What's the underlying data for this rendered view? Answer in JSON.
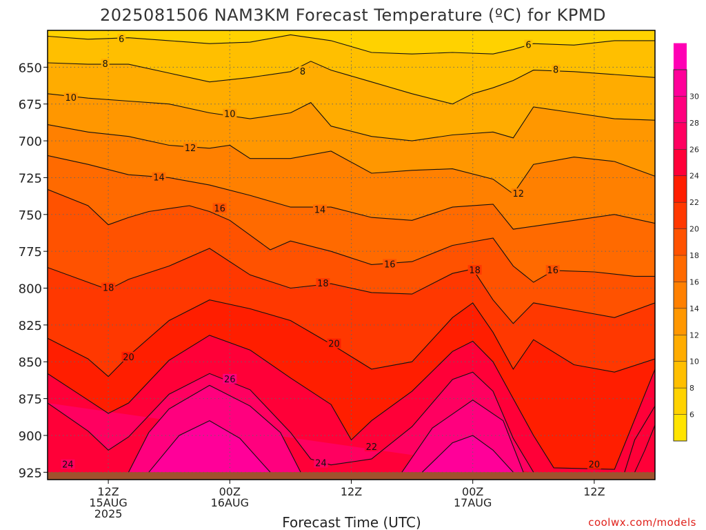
{
  "title": "2025081506 NAM3KM Forecast Temperature (ºC) for KPMD",
  "credit": "coolwx.com/models",
  "colors": {
    "bands": [
      "#ffe400",
      "#ffd200",
      "#ffbf00",
      "#ffac00",
      "#ff9700",
      "#ff8000",
      "#ff6a00",
      "#ff5200",
      "#ff3800",
      "#ff1e00",
      "#ff0038",
      "#ff0060",
      "#ff007e",
      "#ff0099",
      "#ff00b4",
      "#ff00d0"
    ],
    "ground": "#a0522d"
  },
  "chart_data": {
    "type": "heatmap",
    "title": "2025081506 NAM3KM Forecast Temperature (ºC) for KPMD",
    "xlabel": "Forecast Time (UTC)",
    "ylabel": "",
    "ylim": [
      625,
      930
    ],
    "yticks": [
      650,
      675,
      700,
      725,
      750,
      775,
      800,
      825,
      850,
      875,
      900,
      925
    ],
    "xlim": [
      "2025-08-15 06Z",
      "2025-08-17 18Z"
    ],
    "xticks": [
      {
        "line1": "12Z",
        "line2": "15AUG",
        "line3": "2025"
      },
      {
        "line1": "00Z",
        "line2": "16AUG",
        "line3": ""
      },
      {
        "line1": "12Z",
        "line2": "",
        "line3": ""
      },
      {
        "line1": "00Z",
        "line2": "17AUG",
        "line3": ""
      },
      {
        "line1": "12Z",
        "line2": "",
        "line3": ""
      }
    ],
    "xtick_hours": [
      6,
      18,
      30,
      42,
      54
    ],
    "colorbar": {
      "ticks": [
        6,
        8,
        10,
        12,
        14,
        16,
        18,
        20,
        22,
        24,
        26,
        28,
        30
      ],
      "min": 4,
      "max": 32
    },
    "contour_labels": [
      {
        "text": "6",
        "hour": 7.3,
        "p": 631
      },
      {
        "text": "6",
        "hour": 47.5,
        "p": 635
      },
      {
        "text": "8",
        "hour": 5.7,
        "p": 648
      },
      {
        "text": "8",
        "hour": 25.2,
        "p": 653
      },
      {
        "text": "8",
        "hour": 50.2,
        "p": 652
      },
      {
        "text": "10",
        "hour": 2.3,
        "p": 671
      },
      {
        "text": "10",
        "hour": 18.0,
        "p": 682
      },
      {
        "text": "12",
        "hour": 14.1,
        "p": 705
      },
      {
        "text": "12",
        "hour": 46.5,
        "p": 736
      },
      {
        "text": "14",
        "hour": 11.0,
        "p": 725
      },
      {
        "text": "14",
        "hour": 26.9,
        "p": 747
      },
      {
        "text": "16",
        "hour": 17.0,
        "p": 746
      },
      {
        "text": "16",
        "hour": 33.8,
        "p": 784
      },
      {
        "text": "16",
        "hour": 49.9,
        "p": 788
      },
      {
        "text": "18",
        "hour": 6.0,
        "p": 800
      },
      {
        "text": "18",
        "hour": 27.2,
        "p": 797
      },
      {
        "text": "18",
        "hour": 42.2,
        "p": 788
      },
      {
        "text": "20",
        "hour": 8.0,
        "p": 847
      },
      {
        "text": "20",
        "hour": 28.3,
        "p": 838
      },
      {
        "text": "20",
        "hour": 54.0,
        "p": 920
      },
      {
        "text": "22",
        "hour": 32.0,
        "p": 908
      },
      {
        "text": "24",
        "hour": 2.0,
        "p": 920
      },
      {
        "text": "24",
        "hour": 27.0,
        "p": 919
      },
      {
        "text": "26",
        "hour": 18.0,
        "p": 862
      }
    ],
    "isotherms": [
      {
        "level": 6,
        "points": [
          [
            0,
            629
          ],
          [
            4,
            631
          ],
          [
            8,
            630
          ],
          [
            12,
            632
          ],
          [
            16,
            634
          ],
          [
            20,
            633
          ],
          [
            24,
            628
          ],
          [
            28,
            632
          ],
          [
            32,
            640
          ],
          [
            36,
            641
          ],
          [
            40,
            640
          ],
          [
            44,
            641
          ],
          [
            46,
            638
          ],
          [
            48,
            634
          ],
          [
            52,
            635
          ],
          [
            56,
            632
          ],
          [
            60,
            632
          ]
        ]
      },
      {
        "level": 8,
        "points": [
          [
            0,
            647
          ],
          [
            4,
            648
          ],
          [
            8,
            648
          ],
          [
            12,
            654
          ],
          [
            16,
            660
          ],
          [
            20,
            657
          ],
          [
            24,
            653
          ],
          [
            26,
            646
          ],
          [
            28,
            652
          ],
          [
            32,
            660
          ],
          [
            36,
            668
          ],
          [
            40,
            675
          ],
          [
            42,
            668
          ],
          [
            44,
            664
          ],
          [
            46,
            659
          ],
          [
            48,
            652
          ],
          [
            52,
            653
          ],
          [
            56,
            655
          ],
          [
            60,
            657
          ]
        ]
      },
      {
        "level": 10,
        "points": [
          [
            0,
            668
          ],
          [
            4,
            671
          ],
          [
            8,
            673
          ],
          [
            12,
            675
          ],
          [
            16,
            681
          ],
          [
            20,
            685
          ],
          [
            24,
            681
          ],
          [
            26,
            674
          ],
          [
            28,
            690
          ],
          [
            32,
            697
          ],
          [
            36,
            700
          ],
          [
            40,
            696
          ],
          [
            44,
            694
          ],
          [
            46,
            698
          ],
          [
            48,
            677
          ],
          [
            52,
            681
          ],
          [
            56,
            685
          ],
          [
            60,
            686
          ]
        ]
      },
      {
        "level": 12,
        "points": [
          [
            0,
            689
          ],
          [
            4,
            694
          ],
          [
            8,
            697
          ],
          [
            12,
            703
          ],
          [
            16,
            705
          ],
          [
            18,
            703
          ],
          [
            20,
            712
          ],
          [
            24,
            712
          ],
          [
            28,
            707
          ],
          [
            32,
            722
          ],
          [
            36,
            720
          ],
          [
            40,
            719
          ],
          [
            44,
            726
          ],
          [
            46,
            736
          ],
          [
            48,
            716
          ],
          [
            52,
            711
          ],
          [
            56,
            714
          ],
          [
            60,
            724
          ]
        ]
      },
      {
        "level": 14,
        "points": [
          [
            0,
            710
          ],
          [
            4,
            716
          ],
          [
            8,
            723
          ],
          [
            12,
            725
          ],
          [
            16,
            730
          ],
          [
            20,
            737
          ],
          [
            24,
            745
          ],
          [
            28,
            745
          ],
          [
            32,
            752
          ],
          [
            36,
            754
          ],
          [
            40,
            745
          ],
          [
            44,
            743
          ],
          [
            46,
            760
          ],
          [
            48,
            758
          ],
          [
            52,
            754
          ],
          [
            56,
            750
          ],
          [
            60,
            756
          ]
        ]
      },
      {
        "level": 16,
        "points": [
          [
            0,
            733
          ],
          [
            4,
            744
          ],
          [
            6,
            757
          ],
          [
            8,
            752
          ],
          [
            10,
            748
          ],
          [
            14,
            744
          ],
          [
            16,
            748
          ],
          [
            18,
            754
          ],
          [
            22,
            774
          ],
          [
            24,
            768
          ],
          [
            28,
            775
          ],
          [
            32,
            784
          ],
          [
            36,
            782
          ],
          [
            40,
            771
          ],
          [
            44,
            766
          ],
          [
            46,
            785
          ],
          [
            48,
            796
          ],
          [
            50,
            788
          ],
          [
            54,
            789
          ],
          [
            58,
            792
          ],
          [
            60,
            792
          ]
        ]
      },
      {
        "level": 18,
        "points": [
          [
            0,
            786
          ],
          [
            4,
            796
          ],
          [
            6,
            801
          ],
          [
            8,
            794
          ],
          [
            12,
            785
          ],
          [
            16,
            773
          ],
          [
            20,
            791
          ],
          [
            24,
            800
          ],
          [
            28,
            797
          ],
          [
            32,
            803
          ],
          [
            36,
            804
          ],
          [
            40,
            790
          ],
          [
            42,
            787
          ],
          [
            44,
            808
          ],
          [
            46,
            824
          ],
          [
            48,
            810
          ],
          [
            52,
            815
          ],
          [
            56,
            820
          ],
          [
            60,
            810
          ]
        ]
      },
      {
        "level": 20,
        "points": [
          [
            0,
            834
          ],
          [
            4,
            848
          ],
          [
            6,
            860
          ],
          [
            8,
            846
          ],
          [
            12,
            822
          ],
          [
            16,
            808
          ],
          [
            20,
            814
          ],
          [
            24,
            822
          ],
          [
            28,
            838
          ],
          [
            32,
            855
          ],
          [
            36,
            850
          ],
          [
            40,
            820
          ],
          [
            42,
            810
          ],
          [
            44,
            830
          ],
          [
            46,
            855
          ],
          [
            48,
            835
          ],
          [
            52,
            852
          ],
          [
            56,
            857
          ],
          [
            60,
            848
          ]
        ]
      },
      {
        "level": 22,
        "points": [
          [
            0,
            858
          ],
          [
            4,
            876
          ],
          [
            6,
            885
          ],
          [
            8,
            878
          ],
          [
            12,
            849
          ],
          [
            16,
            832
          ],
          [
            20,
            842
          ],
          [
            24,
            861
          ],
          [
            28,
            879
          ],
          [
            30,
            903
          ],
          [
            32,
            890
          ],
          [
            36,
            870
          ],
          [
            40,
            843
          ],
          [
            42,
            836
          ],
          [
            44,
            850
          ],
          [
            46,
            875
          ],
          [
            48,
            900
          ],
          [
            50,
            922
          ],
          [
            56,
            923
          ],
          [
            60,
            855
          ]
        ]
      },
      {
        "level": 24,
        "points": [
          [
            0,
            878
          ],
          [
            4,
            897
          ],
          [
            6,
            910
          ],
          [
            8,
            901
          ],
          [
            12,
            872
          ],
          [
            16,
            858
          ],
          [
            20,
            869
          ],
          [
            24,
            898
          ],
          [
            26,
            916
          ],
          [
            28,
            920
          ],
          [
            32,
            916
          ],
          [
            36,
            894
          ],
          [
            40,
            862
          ],
          [
            42,
            857
          ],
          [
            44,
            870
          ],
          [
            46,
            902
          ],
          [
            48,
            925
          ]
        ]
      },
      {
        "level": 26,
        "points": [
          [
            8,
            925
          ],
          [
            10,
            898
          ],
          [
            12,
            882
          ],
          [
            16,
            866
          ],
          [
            20,
            880
          ],
          [
            23,
            898
          ],
          [
            25,
            925
          ]
        ]
      },
      {
        "level": 26,
        "points": [
          [
            35,
            925
          ],
          [
            38,
            895
          ],
          [
            42,
            876
          ],
          [
            45,
            890
          ],
          [
            47,
            925
          ]
        ]
      },
      {
        "level": 28,
        "points": [
          [
            10,
            925
          ],
          [
            13,
            900
          ],
          [
            16,
            890
          ],
          [
            19,
            902
          ],
          [
            22,
            925
          ]
        ]
      },
      {
        "level": 28,
        "points": [
          [
            37,
            925
          ],
          [
            40,
            905
          ],
          [
            42,
            900
          ],
          [
            44,
            910
          ],
          [
            46,
            925
          ]
        ]
      },
      {
        "level": 22,
        "points": [
          [
            60,
            880
          ],
          [
            58,
            903
          ],
          [
            57,
            925
          ]
        ]
      },
      {
        "level": 24,
        "points": [
          [
            60,
            893
          ],
          [
            59,
            910
          ],
          [
            58,
            925
          ]
        ]
      }
    ]
  }
}
